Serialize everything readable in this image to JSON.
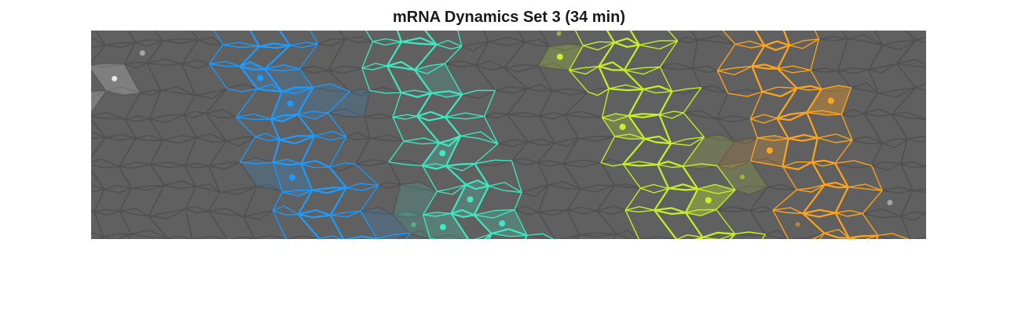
{
  "title": "mRNA Dynamics Set 3 (34 min)",
  "panel": {
    "background": "#606060",
    "membrane_color": "#515151"
  },
  "stripes": [
    {
      "color": "#1e9bff",
      "nuclei": [
        {
          "c": 2,
          "r": 2,
          "glow": true
        },
        {
          "c": 2,
          "r": 3,
          "glow": true
        },
        {
          "c": 1,
          "r": 6,
          "glow": true
        }
      ],
      "faint_cells": [
        [
          3,
          2
        ],
        [
          3,
          3
        ],
        [
          4,
          3
        ],
        [
          0,
          6
        ],
        [
          4,
          8
        ]
      ]
    },
    {
      "color": "#3fe8c2",
      "nuclei": [
        {
          "c": 2,
          "r": 5,
          "glow": true
        },
        {
          "c": 2,
          "r": 7,
          "glow": true
        },
        {
          "c": 1,
          "r": 8,
          "glow": true
        },
        {
          "c": 3,
          "r": 8,
          "glow": true
        },
        {
          "c": 0,
          "r": 8,
          "glow": false
        }
      ],
      "faint_cells": [
        [
          3,
          2
        ],
        [
          0,
          7
        ],
        [
          0,
          8
        ]
      ]
    },
    {
      "color": "#c8ef2a",
      "nuclei": [
        {
          "c": 0,
          "r": 0,
          "glow": false
        },
        {
          "c": 0,
          "r": 1,
          "glow": true
        },
        {
          "c": 1,
          "r": 4,
          "glow": true
        },
        {
          "c": 3,
          "r": 7,
          "glow": true
        },
        {
          "c": 4,
          "r": 6,
          "glow": false
        }
      ],
      "faint_cells": [
        [
          4,
          5
        ],
        [
          4,
          6
        ],
        [
          3,
          7
        ]
      ]
    },
    {
      "color": "#ffa41e",
      "nuclei": [
        {
          "c": 1,
          "r": 5,
          "glow": true
        },
        {
          "c": 3,
          "r": 3,
          "glow": true
        },
        {
          "c": 1,
          "r": 8,
          "glow": false
        }
      ],
      "faint_cells": [
        [
          0,
          5
        ],
        [
          3,
          3
        ]
      ]
    }
  ],
  "gray_spots": [
    {
      "col": 2,
      "row": 1,
      "glow": false
    },
    {
      "col": 1,
      "row": 2,
      "glow": true
    },
    {
      "col": 0,
      "row": 3,
      "glow": true
    },
    {
      "col": 27,
      "row": 7,
      "glow": false
    }
  ]
}
